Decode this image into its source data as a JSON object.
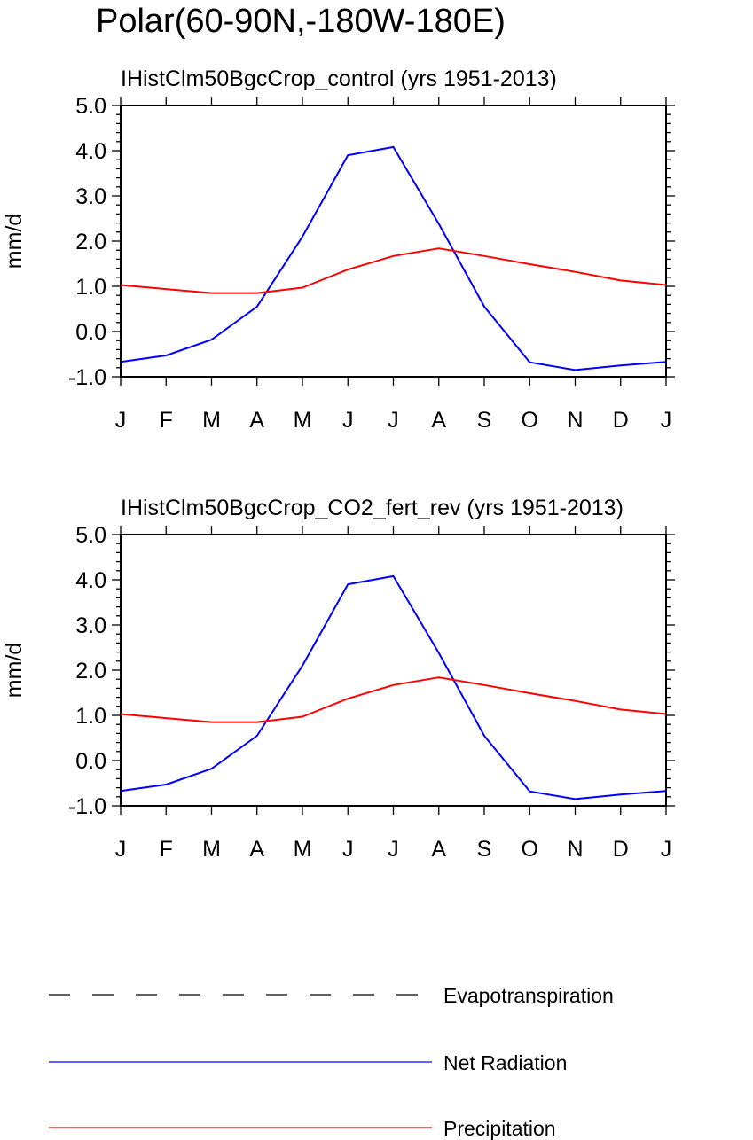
{
  "main_title": "Polar(60-90N,-180W-180E)",
  "colors": {
    "evapotranspiration": "#000000",
    "net_radiation": "#0000ff",
    "precipitation": "#ff0000"
  },
  "legend": {
    "items": [
      {
        "label": "Evapotranspiration",
        "color": "#000000",
        "style": "dashed"
      },
      {
        "label": "Net Radiation",
        "color": "#0000ff",
        "style": "solid"
      },
      {
        "label": "Precipitation",
        "color": "#ff0000",
        "style": "solid"
      }
    ]
  },
  "chart_data": [
    {
      "type": "line",
      "title": "IHistClm50BgcCrop_control (yrs 1951-2013)",
      "xlabel": "",
      "ylabel": "mm/d",
      "ylim": [
        -1.0,
        5.0
      ],
      "yticks": [
        "-1.0",
        "0.0",
        "1.0",
        "2.0",
        "3.0",
        "4.0",
        "5.0"
      ],
      "categories": [
        "J",
        "F",
        "M",
        "A",
        "M",
        "J",
        "J",
        "A",
        "S",
        "O",
        "N",
        "D",
        "J"
      ],
      "series": [
        {
          "name": "Net Radiation",
          "color": "#0000ff",
          "values": [
            -0.67,
            -0.53,
            -0.18,
            0.55,
            2.1,
            3.9,
            4.08,
            2.38,
            0.55,
            -0.68,
            -0.85,
            -0.75,
            -0.67
          ]
        },
        {
          "name": "Precipitation",
          "color": "#ff0000",
          "values": [
            1.03,
            0.94,
            0.85,
            0.85,
            0.97,
            1.37,
            1.67,
            1.84,
            1.67,
            1.49,
            1.32,
            1.13,
            1.03
          ]
        }
      ],
      "grid": false
    },
    {
      "type": "line",
      "title": "IHistClm50BgcCrop_CO2_fert_rev (yrs 1951-2013)",
      "xlabel": "",
      "ylabel": "mm/d",
      "ylim": [
        -1.0,
        5.0
      ],
      "yticks": [
        "-1.0",
        "0.0",
        "1.0",
        "2.0",
        "3.0",
        "4.0",
        "5.0"
      ],
      "categories": [
        "J",
        "F",
        "M",
        "A",
        "M",
        "J",
        "J",
        "A",
        "S",
        "O",
        "N",
        "D",
        "J"
      ],
      "series": [
        {
          "name": "Net Radiation",
          "color": "#0000ff",
          "values": [
            -0.67,
            -0.53,
            -0.18,
            0.55,
            2.1,
            3.9,
            4.08,
            2.38,
            0.55,
            -0.68,
            -0.85,
            -0.75,
            -0.67
          ]
        },
        {
          "name": "Precipitation",
          "color": "#ff0000",
          "values": [
            1.03,
            0.94,
            0.85,
            0.85,
            0.97,
            1.37,
            1.67,
            1.84,
            1.67,
            1.49,
            1.32,
            1.13,
            1.03
          ]
        }
      ],
      "grid": false
    }
  ]
}
